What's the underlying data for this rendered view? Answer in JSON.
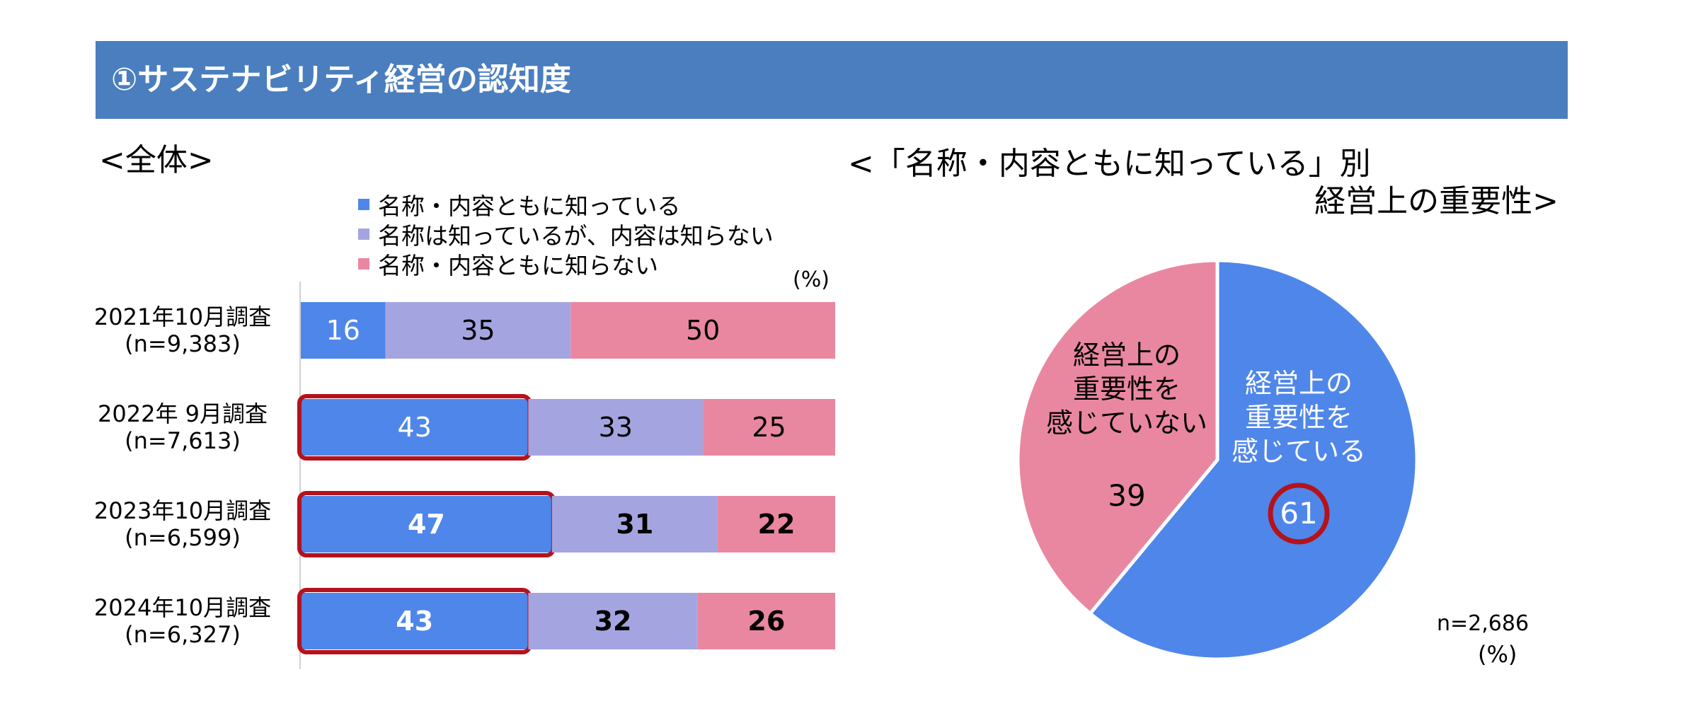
{
  "header": {
    "title": "①サステナビリティ経営の認知度"
  },
  "left": {
    "subtitle": "<全体>",
    "unit": "(%)"
  },
  "right": {
    "subtitle_line1": "<「名称・内容ともに知っている」別",
    "subtitle_line2": "経営上の重要性>",
    "n": "n=2,686",
    "unit": "(%)"
  },
  "colors": {
    "banner": "#4a7ebf",
    "known": "#4f86ea",
    "name_only": "#a4a5e0",
    "unknown": "#ea87a0",
    "highlight": "#b5121b"
  },
  "chart_data": [
    {
      "type": "bar",
      "orientation": "horizontal-stacked-100",
      "title": "<全体>",
      "categories": [
        "2021年10月調査",
        "2022年 9月調査",
        "2023年10月調査",
        "2024年10月調査"
      ],
      "category_sublabels": [
        "(n=9,383)",
        "(n=7,613)",
        "(n=6,599)",
        "(n=6,327)"
      ],
      "series": [
        {
          "name": "名称・内容ともに知っている",
          "values": [
            16,
            43,
            47,
            43
          ]
        },
        {
          "name": "名称は知っているが、内容は知らない",
          "values": [
            35,
            33,
            31,
            32
          ]
        },
        {
          "name": "名称・内容ともに知らない",
          "values": [
            50,
            25,
            22,
            26
          ]
        }
      ],
      "bold_rows": [
        2,
        3
      ],
      "highlighted_rows": [
        1,
        2,
        3
      ],
      "legend_position": "top",
      "xlim": [
        0,
        100
      ],
      "unit": "(%)"
    },
    {
      "type": "pie",
      "title": "<「名称・内容ともに知っている」別 経営上の重要性>",
      "slices": [
        {
          "name": "経営上の重要性を感じている",
          "label_lines": [
            "経営上の",
            "重要性を",
            "感じている"
          ],
          "value": 61
        },
        {
          "name": "経営上の重要性を感じていない",
          "label_lines": [
            "経営上の",
            "重要性を",
            "感じていない"
          ],
          "value": 39
        }
      ],
      "highlighted_slice": 0,
      "n": "n=2,686",
      "unit": "(%)"
    }
  ]
}
